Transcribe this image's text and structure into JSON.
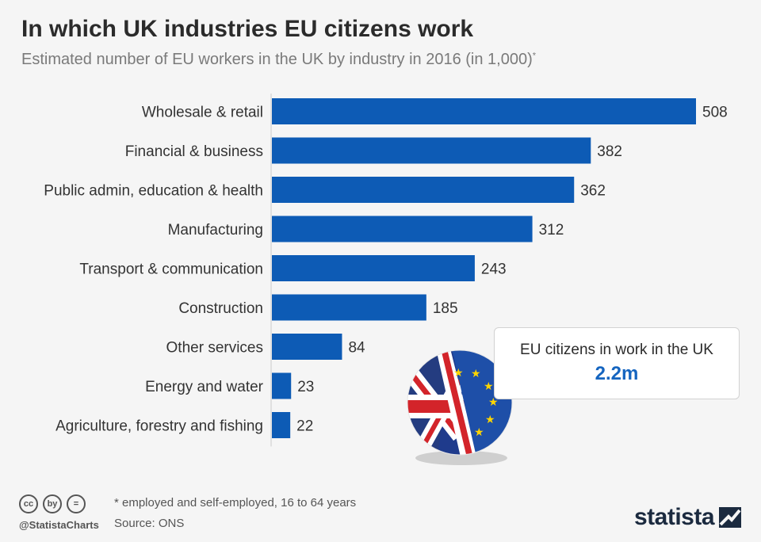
{
  "title": "In which UK industries EU citizens work",
  "subtitle": "Estimated number of EU workers in the UK by industry in 2016 (in 1,000)",
  "subtitle_marker": "*",
  "colors": {
    "bar": "#0d5bb5",
    "accent": "#1565c0",
    "background": "#f5f5f5"
  },
  "chart_data": {
    "type": "bar",
    "orientation": "horizontal",
    "title": "In which UK industries EU citizens work",
    "xlabel": "",
    "ylabel": "",
    "unit": "thousands",
    "xlim": [
      0,
      508
    ],
    "grid": false,
    "categories": [
      "Wholesale & retail",
      "Financial & business",
      "Public admin, education & health",
      "Manufacturing",
      "Transport & communication",
      "Construction",
      "Other services",
      "Energy and water",
      "Agriculture, forestry and fishing"
    ],
    "values": [
      508,
      382,
      362,
      312,
      243,
      185,
      84,
      23,
      22
    ]
  },
  "callout": {
    "label": "EU citizens in work in the UK",
    "value": "2.2m"
  },
  "footnote": "* employed and self-employed, 16 to 64 years",
  "source": "Source: ONS",
  "cc_icons": [
    "cc",
    "by",
    "="
  ],
  "handle": "@StatistaCharts",
  "brand": "statista"
}
